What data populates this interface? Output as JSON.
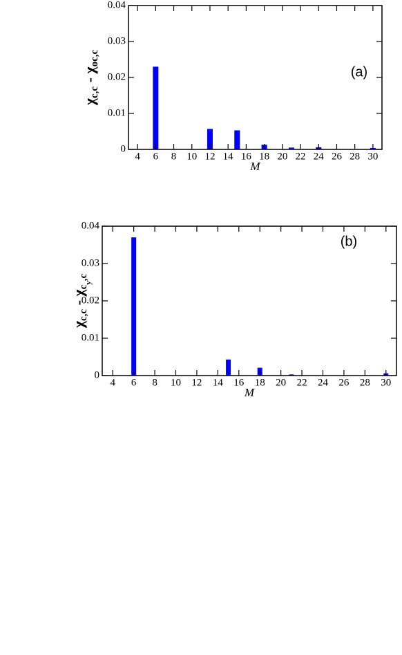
{
  "chart_data": [
    {
      "type": "bar",
      "annotation": "(a)",
      "xlabel": "M",
      "ylabel": [
        "χ",
        "c,c",
        " - ",
        "χ",
        "oc,c"
      ],
      "x": [
        6,
        12,
        15,
        18,
        21,
        24,
        30
      ],
      "values": [
        0.023,
        0.0057,
        0.0053,
        0.0013,
        0.0005,
        0.0006,
        0.0004
      ],
      "color": "#0000ff",
      "xlim": [
        3,
        31
      ],
      "xticks": [
        4,
        6,
        8,
        10,
        12,
        14,
        16,
        18,
        20,
        22,
        24,
        26,
        28,
        30
      ],
      "ylim": [
        0,
        0.04
      ],
      "yticks": [
        0,
        0.01,
        0.02,
        0.03,
        0.04
      ]
    },
    {
      "type": "bar",
      "annotation": "(b)",
      "xlabel": "M",
      "ylabel": [
        "χ",
        "c,c",
        " - ",
        "χ",
        "c",
        "y",
        ",c"
      ],
      "x": [
        6,
        15,
        18,
        21,
        30
      ],
      "values": [
        0.037,
        0.0043,
        0.0021,
        0.0003,
        0.0006
      ],
      "color": "#0000ff",
      "xlim": [
        3,
        31
      ],
      "xticks": [
        4,
        6,
        8,
        10,
        12,
        14,
        16,
        18,
        20,
        22,
        24,
        26,
        28,
        30
      ],
      "ylim": [
        0,
        0.04
      ],
      "yticks": [
        0,
        0.01,
        0.02,
        0.03,
        0.04
      ]
    }
  ]
}
